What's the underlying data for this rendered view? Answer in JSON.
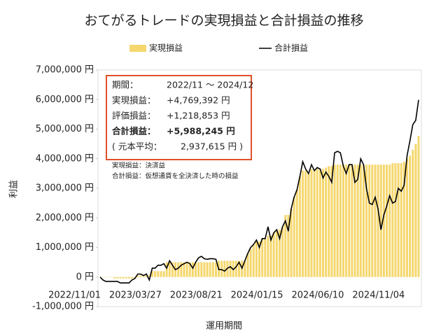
{
  "chart_data": {
    "type": "bar",
    "title": "おてがるトレードの実現損益と合計損益の推移",
    "x_label": "運用期間",
    "y_label": "利益",
    "categories": [
      "2022/11/01",
      null,
      null,
      null,
      null,
      null,
      null,
      null,
      null,
      null,
      null,
      null,
      null,
      null,
      null,
      null,
      null,
      null,
      null,
      null,
      null,
      "2023/03/27",
      null,
      null,
      null,
      null,
      null,
      null,
      null,
      null,
      null,
      null,
      null,
      null,
      null,
      null,
      null,
      null,
      null,
      null,
      null,
      null,
      "2023/08/21",
      null,
      null,
      null,
      null,
      null,
      null,
      null,
      null,
      null,
      null,
      null,
      null,
      null,
      null,
      null,
      null,
      null,
      null,
      null,
      null,
      "2024/01/15",
      null,
      null,
      null,
      null,
      null,
      null,
      null,
      null,
      null,
      null,
      null,
      null,
      null,
      null,
      null,
      null,
      null,
      null,
      null,
      null,
      "2024/06/10",
      null,
      null,
      null,
      null,
      null,
      null,
      null,
      null,
      null,
      null,
      null,
      null,
      null,
      null,
      null,
      null,
      null,
      null,
      null,
      null,
      "2024/11/04",
      null,
      null,
      null,
      null,
      null
    ],
    "series": [
      {
        "name": "実現損益",
        "type": "bar",
        "color": "#f5d76e",
        "values": [
          0,
          0,
          0,
          0,
          0,
          -50000,
          -50000,
          -50000,
          -50000,
          -50000,
          -50000,
          -50000,
          -50000,
          50000,
          50000,
          50000,
          50000,
          50000,
          200000,
          200000,
          200000,
          200000,
          200000,
          500000,
          500000,
          500000,
          500000,
          500000,
          500000,
          500000,
          500000,
          500000,
          500000,
          500000,
          500000,
          500000,
          500000,
          500000,
          500000,
          500000,
          500000,
          550000,
          550000,
          550000,
          550000,
          550000,
          550000,
          550000,
          550000,
          550000,
          550000,
          800000,
          950000,
          1100000,
          1200000,
          1200000,
          1300000,
          1300000,
          1400000,
          1400000,
          1500000,
          1600000,
          1600000,
          1700000,
          2100000,
          2100000,
          2300000,
          2700000,
          2950000,
          3400000,
          3600000,
          3600000,
          3500000,
          3650000,
          3600000,
          3650000,
          3650000,
          3650000,
          3700000,
          3750000,
          3750000,
          3800000,
          3800000,
          3800000,
          3800000,
          3800000,
          3800000,
          3800000,
          3800000,
          3800000,
          3800000,
          3800000,
          3800000,
          3800000,
          3800000,
          3800000,
          3800000,
          3800000,
          3800000,
          3800000,
          3800000,
          3850000,
          3850000,
          3850000,
          3850000,
          3900000,
          4000000,
          4100000,
          4300000,
          4500000,
          4769392
        ]
      },
      {
        "name": "合計損益",
        "type": "line",
        "color": "#000000",
        "values": [
          0,
          -100000,
          -150000,
          -150000,
          -150000,
          -150000,
          -150000,
          -200000,
          -200000,
          -200000,
          -200000,
          -100000,
          -50000,
          100000,
          100000,
          50000,
          100000,
          -100000,
          300000,
          300000,
          400000,
          400000,
          450000,
          300000,
          550000,
          400000,
          250000,
          300000,
          400000,
          450000,
          500000,
          450000,
          300000,
          500000,
          650000,
          700000,
          620000,
          600000,
          620000,
          620000,
          600000,
          250000,
          250000,
          200000,
          300000,
          350000,
          250000,
          350000,
          500000,
          300000,
          550000,
          800000,
          1000000,
          1100000,
          1250000,
          1000000,
          1300000,
          1300000,
          1700000,
          1250000,
          1500000,
          1600000,
          1300000,
          1700000,
          1900000,
          1550000,
          2300000,
          2700000,
          2950000,
          3400000,
          3900000,
          3650000,
          3500000,
          3800000,
          3600000,
          3700000,
          3650000,
          3350000,
          3550000,
          3400000,
          3200000,
          4200000,
          4250000,
          4200000,
          3750000,
          3500000,
          3800000,
          3800000,
          3200000,
          3300000,
          4000000,
          3800000,
          3000000,
          2500000,
          2450000,
          2700000,
          2300000,
          1600000,
          2100000,
          2400000,
          2750000,
          2500000,
          2550000,
          3000000,
          2900000,
          3100000,
          4100000,
          4600000,
          5150000,
          5300000,
          5988245
        ]
      }
    ],
    "ylim": [
      -1000000,
      7000000
    ],
    "yticks": [
      {
        "value": -1000000,
        "label": "-1,000,000 円"
      },
      {
        "value": 0,
        "label": "0 円"
      },
      {
        "value": 1000000,
        "label": "1,000,000 円"
      },
      {
        "value": 2000000,
        "label": "2,000,000 円"
      },
      {
        "value": 3000000,
        "label": "3,000,000 円"
      },
      {
        "value": 4000000,
        "label": "4,000,000 円"
      },
      {
        "value": 5000000,
        "label": "5,000,000 円"
      },
      {
        "value": 6000000,
        "label": "6,000,000 円"
      },
      {
        "value": 7000000,
        "label": "7,000,000 円"
      }
    ],
    "grid": false,
    "info_box": [
      [
        "期間：",
        "2022/11 ～ 2024/12"
      ],
      [
        "実現損益：",
        "+4,769,392 円"
      ],
      [
        "評価損益：",
        "+1,218,853 円"
      ],
      [
        "合計損益：",
        "+5,988,245 円"
      ],
      [
        "( 元本平均：",
        "2,937,615 円 )"
      ]
    ],
    "notes": [
      "実現損益：決済益",
      "合計損益：仮想通貨を全決済した時の損益"
    ]
  }
}
